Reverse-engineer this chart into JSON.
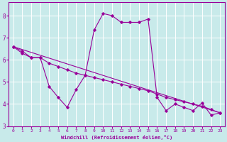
{
  "xlabel": "Windchill (Refroidissement éolien,°C)",
  "bg_color": "#c8eaea",
  "line_color": "#990099",
  "grid_color": "#b0d8d8",
  "xlim": [
    -0.5,
    23.5
  ],
  "ylim": [
    3.0,
    8.6
  ],
  "yticks": [
    3,
    4,
    5,
    6,
    7,
    8
  ],
  "xticks": [
    0,
    1,
    2,
    3,
    4,
    5,
    6,
    7,
    8,
    9,
    10,
    11,
    12,
    13,
    14,
    15,
    16,
    17,
    18,
    19,
    20,
    21,
    22,
    23
  ],
  "line1_x": [
    0,
    1,
    2,
    3,
    4,
    5,
    6,
    7,
    8,
    9,
    10,
    11,
    12,
    13,
    14,
    15,
    16,
    17,
    18,
    19,
    20,
    21,
    22,
    23
  ],
  "line1_y": [
    6.6,
    6.3,
    6.1,
    6.1,
    4.8,
    4.3,
    3.85,
    4.65,
    5.3,
    7.35,
    8.1,
    8.0,
    7.7,
    7.7,
    7.7,
    7.85,
    4.3,
    3.7,
    4.0,
    3.85,
    3.7,
    4.05,
    3.5,
    3.6
  ],
  "line2_x": [
    0,
    1,
    2,
    3,
    4,
    5,
    6,
    7,
    8,
    9,
    10,
    11,
    12,
    13,
    14,
    15,
    16,
    17,
    18,
    19,
    20,
    21,
    22,
    23
  ],
  "line2_y": [
    6.6,
    6.4,
    6.1,
    6.1,
    5.85,
    5.7,
    5.55,
    5.4,
    5.3,
    5.2,
    5.1,
    5.0,
    4.9,
    4.8,
    4.7,
    4.6,
    4.45,
    4.3,
    4.2,
    4.1,
    4.0,
    3.9,
    3.75,
    3.6
  ],
  "line3_x": [
    0,
    23
  ],
  "line3_y": [
    6.6,
    3.6
  ]
}
